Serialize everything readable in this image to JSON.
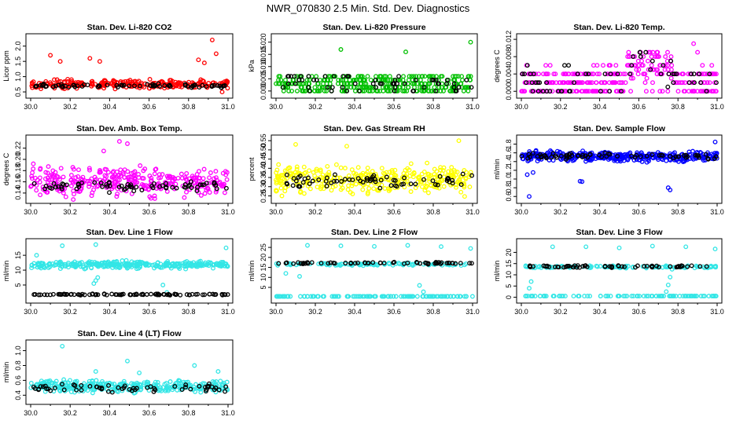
{
  "figure_title": "NWR_070830  2.5 Min. Std. Dev. Diagnostics",
  "chart_data": [
    {
      "type": "scatter",
      "id": "co2",
      "title": "Stan. Dev. Li-820 CO2",
      "ylabel": "Licor ppm",
      "color": "#ff0000",
      "overlay_color": "#000000",
      "xlim": [
        30.0,
        31.0
      ],
      "ylim": [
        0.45,
        2.25
      ],
      "xticks": [
        "30.0",
        "30.2",
        "30.4",
        "30.6",
        "30.8",
        "31.0"
      ],
      "yticks": [
        "0.5",
        "1.0",
        "1.5",
        "2.0"
      ],
      "main_series": {
        "mode": "band",
        "base": 0.75,
        "spread": 0.13,
        "count": 260,
        "outliers": [
          [
            30.1,
            1.7
          ],
          [
            30.15,
            1.5
          ],
          [
            30.3,
            1.6
          ],
          [
            30.35,
            1.5
          ],
          [
            30.85,
            1.55
          ],
          [
            30.88,
            1.45
          ],
          [
            30.92,
            2.2
          ],
          [
            30.94,
            1.75
          ],
          [
            30.97,
            0.5
          ]
        ]
      },
      "black_series": {
        "mode": "band",
        "base": 0.7,
        "spread": 0.05,
        "count": 70
      }
    },
    {
      "type": "scatter",
      "id": "pressure",
      "title": "Stan. Dev. Li-820 Pressure",
      "ylabel": "kPa",
      "color": "#00c000",
      "overlay_color": "#000000",
      "xlim": [
        30.0,
        31.0
      ],
      "ylim": [
        -0.001,
        0.0215
      ],
      "xticks": [
        "30.0",
        "30.2",
        "30.4",
        "30.6",
        "30.8",
        "31.0"
      ],
      "yticks": [
        "0.000",
        "0.005",
        "0.010",
        "0.015",
        "0.020"
      ],
      "main_series": {
        "mode": "levels",
        "levels": [
          0.0,
          0.0015,
          0.003,
          0.0045,
          0.006
        ],
        "count": 330,
        "outliers": [
          [
            30.33,
            0.017
          ],
          [
            30.66,
            0.016
          ],
          [
            30.99,
            0.02
          ]
        ]
      },
      "black_series": {
        "mode": "levels",
        "levels": [
          0.0,
          0.0015,
          0.003,
          0.0045,
          0.006
        ],
        "count": 60
      }
    },
    {
      "type": "scatter",
      "id": "temp",
      "title": "Stan. Dev. Li-820 Temp.",
      "ylabel": "degrees C",
      "color": "#ff00ff",
      "overlay_color": "#000000",
      "xlim": [
        30.0,
        31.0
      ],
      "ylim": [
        -0.0005,
        0.0122
      ],
      "xticks": [
        "30.0",
        "30.2",
        "30.4",
        "30.6",
        "30.8",
        "31.0"
      ],
      "yticks": [
        "0.000",
        "0.004",
        "0.008",
        "0.012"
      ],
      "main_series": {
        "mode": "temp",
        "count": 360,
        "outliers": [
          [
            30.88,
            0.011
          ],
          [
            30.9,
            0.009
          ]
        ]
      },
      "black_series": {
        "mode": "temp",
        "count": 60
      }
    },
    {
      "type": "scatter",
      "id": "ambbox",
      "title": "Stan. Dev. Amb. Box Temp.",
      "ylabel": "degrees C",
      "color": "#ff00ff",
      "overlay_color": "#000000",
      "xlim": [
        30.0,
        31.0
      ],
      "ylim": [
        0.13,
        0.235
      ],
      "xticks": [
        "30.0",
        "30.2",
        "30.4",
        "30.6",
        "30.8",
        "31.0"
      ],
      "yticks": [
        "0.14",
        "0.16",
        "0.18",
        "0.20",
        "0.22"
      ],
      "main_series": {
        "mode": "band",
        "base": 0.16,
        "spread": 0.022,
        "count": 330,
        "outliers": [
          [
            30.45,
            0.232
          ],
          [
            30.49,
            0.228
          ],
          [
            30.37,
            0.215
          ]
        ]
      },
      "black_series": {
        "mode": "band",
        "base": 0.152,
        "spread": 0.008,
        "count": 70
      }
    },
    {
      "type": "scatter",
      "id": "rh",
      "title": "Stan. Dev. Gas Stream RH",
      "ylabel": "percent",
      "color": "#ffff00",
      "overlay_color": "#000000",
      "xlim": [
        30.0,
        31.0
      ],
      "ylim": [
        0.235,
        0.555
      ],
      "xticks": [
        "30.0",
        "30.2",
        "30.4",
        "30.6",
        "30.8",
        "31.0"
      ],
      "yticks": [
        "0.25",
        "0.30",
        "0.35",
        "0.40",
        "0.45",
        "0.50",
        "0.55"
      ],
      "main_series": {
        "mode": "band",
        "base": 0.34,
        "spread": 0.065,
        "count": 340,
        "outliers": [
          [
            30.1,
            0.53
          ],
          [
            30.36,
            0.52
          ],
          [
            30.93,
            0.55
          ],
          [
            30.03,
            0.25
          ]
        ]
      },
      "black_series": {
        "mode": "band",
        "base": 0.33,
        "spread": 0.035,
        "count": 70
      }
    },
    {
      "type": "scatter",
      "id": "flow",
      "title": "Stan. Dev. Sample Flow",
      "ylabel": "ml/min",
      "color": "#0000ff",
      "overlay_color": "#000000",
      "xlim": [
        30.0,
        31.0
      ],
      "ylim": [
        0.55,
        1.9
      ],
      "xticks": [
        "30.0",
        "30.2",
        "30.4",
        "30.6",
        "30.8",
        "31.0"
      ],
      "yticks": [
        "0.6",
        "0.8",
        "1.0",
        "1.2",
        "1.4",
        "1.6",
        "1.8"
      ],
      "main_series": {
        "mode": "band",
        "base": 1.52,
        "spread": 0.1,
        "count": 360,
        "outliers": [
          [
            30.03,
            1.1
          ],
          [
            30.04,
            0.6
          ],
          [
            30.06,
            1.15
          ],
          [
            30.3,
            0.95
          ],
          [
            30.31,
            0.94
          ],
          [
            30.75,
            0.8
          ],
          [
            30.76,
            0.75
          ],
          [
            30.99,
            1.85
          ]
        ]
      },
      "black_series": {
        "mode": "band",
        "base": 1.52,
        "spread": 0.06,
        "count": 70
      }
    },
    {
      "type": "scatter",
      "id": "line1",
      "title": "Stan. Dev. Line 1 Flow",
      "ylabel": "ml/min",
      "color": "#33e6e6",
      "overlay_color": "#000000",
      "xlim": [
        30.0,
        31.0
      ],
      "ylim": [
        0.5,
        19.0
      ],
      "xticks": [
        "30.0",
        "30.2",
        "30.4",
        "30.6",
        "30.8",
        "31.0"
      ],
      "yticks": [
        "5",
        "10",
        "15"
      ],
      "main_series": {
        "mode": "band",
        "base": 11.8,
        "spread": 1.0,
        "count": 330,
        "outliers": [
          [
            30.32,
            5.5
          ],
          [
            30.33,
            6.5
          ],
          [
            30.34,
            7.5
          ],
          [
            30.16,
            18.2
          ],
          [
            30.33,
            18.6
          ],
          [
            30.67,
            5.0
          ],
          [
            30.69,
            2.5
          ],
          [
            30.99,
            17.5
          ],
          [
            30.03,
            15.0
          ]
        ]
      },
      "black_series": {
        "mode": "band",
        "base": 1.8,
        "spread": 0.2,
        "count": 90
      }
    },
    {
      "type": "scatter",
      "id": "line2",
      "title": "Stan. Dev. Line 2 Flow",
      "ylabel": "ml/min",
      "color": "#33e6e6",
      "overlay_color": "#000000",
      "xlim": [
        30.0,
        31.0
      ],
      "ylim": [
        -0.5,
        27.0
      ],
      "xticks": [
        "30.0",
        "30.2",
        "30.4",
        "30.6",
        "30.8",
        "31.0"
      ],
      "yticks": [
        "5",
        "10",
        "15",
        "20",
        "25"
      ],
      "main_series": {
        "mode": "twoband",
        "base": 16.6,
        "spread": 0.6,
        "base2": 0.5,
        "count": 220,
        "outliers": [
          [
            30.16,
            26.0
          ],
          [
            30.33,
            25.8
          ],
          [
            30.5,
            25.5
          ],
          [
            30.67,
            26.0
          ],
          [
            30.84,
            25.4
          ],
          [
            30.99,
            24.5
          ],
          [
            30.05,
            12.0
          ],
          [
            30.12,
            10.5
          ],
          [
            30.75,
            2.8
          ],
          [
            30.73,
            6.0
          ]
        ]
      },
      "black_series": {
        "mode": "band",
        "base": 17.2,
        "spread": 0.4,
        "count": 60
      }
    },
    {
      "type": "scatter",
      "id": "line3",
      "title": "Stan. Dev. Line 3 Flow",
      "ylabel": "ml/min",
      "color": "#33e6e6",
      "overlay_color": "#000000",
      "xlim": [
        30.0,
        31.0
      ],
      "ylim": [
        -0.5,
        24.0
      ],
      "xticks": [
        "30.0",
        "30.2",
        "30.4",
        "30.6",
        "30.8",
        "31.0"
      ],
      "yticks": [
        "0",
        "5",
        "10",
        "15",
        "20"
      ],
      "main_series": {
        "mode": "twoband",
        "base": 13.5,
        "spread": 0.5,
        "base2": 0.5,
        "count": 220,
        "outliers": [
          [
            30.16,
            22.5
          ],
          [
            30.33,
            22.5
          ],
          [
            30.5,
            22.0
          ],
          [
            30.67,
            22.8
          ],
          [
            30.84,
            22.5
          ],
          [
            30.99,
            21.5
          ],
          [
            30.04,
            4.0
          ],
          [
            30.05,
            7.0
          ],
          [
            30.74,
            2.5
          ],
          [
            30.75,
            5.5
          ],
          [
            30.76,
            9.0
          ],
          [
            30.77,
            12.5
          ]
        ]
      },
      "black_series": {
        "mode": "band",
        "base": 13.7,
        "spread": 0.4,
        "count": 60
      }
    },
    {
      "type": "scatter",
      "id": "line4",
      "title": "Stan. Dev. Line 4 (LT) Flow",
      "ylabel": "ml/min",
      "color": "#33e6e6",
      "overlay_color": "#000000",
      "xlim": [
        30.0,
        31.0
      ],
      "ylim": [
        0.34,
        1.08
      ],
      "xticks": [
        "30.0",
        "30.2",
        "30.4",
        "30.6",
        "30.8",
        "31.0"
      ],
      "yticks": [
        "0.4",
        "0.6",
        "0.8",
        "1.0"
      ],
      "main_series": {
        "mode": "band",
        "base": 0.52,
        "spread": 0.07,
        "count": 330,
        "outliers": [
          [
            30.16,
            1.06
          ],
          [
            30.49,
            0.86
          ],
          [
            30.83,
            0.8
          ],
          [
            30.95,
            0.72
          ],
          [
            30.33,
            0.72
          ],
          [
            30.55,
            0.7
          ]
        ]
      },
      "black_series": {
        "mode": "band",
        "base": 0.5,
        "spread": 0.05,
        "count": 60
      }
    }
  ]
}
